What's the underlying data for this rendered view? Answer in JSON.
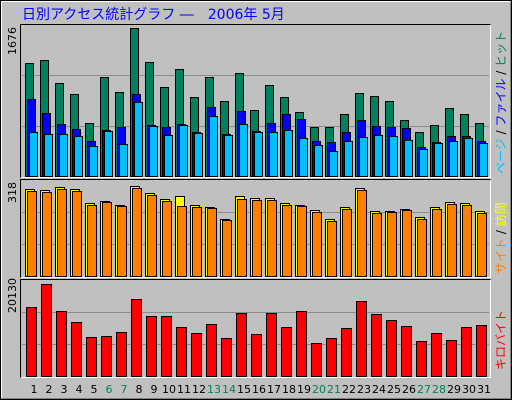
{
  "colors": {
    "background": "#C0C0C0",
    "title": "#0000FF",
    "weekday_label": "#000000",
    "weekend_label": "#00805C",
    "grid": "#8C8C8C",
    "separator": "#000000",
    "bar_outline": "#000000"
  },
  "chart_data": {
    "type": "bar",
    "title": "日別アクセス統計グラフ ―　2006年 5月",
    "grid": true,
    "legend": "right, vertical",
    "label_separator": " / ",
    "x": [
      1,
      2,
      3,
      4,
      5,
      6,
      7,
      8,
      9,
      10,
      11,
      12,
      13,
      14,
      15,
      16,
      17,
      18,
      19,
      20,
      21,
      22,
      23,
      24,
      25,
      26,
      27,
      28,
      29,
      30,
      31
    ],
    "weekend_days": [
      6,
      7,
      13,
      14,
      20,
      21,
      27,
      28
    ],
    "panels": [
      {
        "ylim": [
          0,
          1676
        ],
        "series": [
          {
            "name": "ヒット",
            "color": "#00805C",
            "values": [
              1274,
              1318,
              1050,
              927,
              603,
              1117,
              950,
              1676,
              1296,
              1006,
              1207,
              894,
              1117,
              849,
              1162,
              749,
              1028,
              894,
              726,
              559,
              559,
              704,
              939,
              905,
              849,
              637,
              503,
              581,
              771,
              704,
              603
            ]
          },
          {
            "name": "ファイル",
            "color": "#0000FF",
            "values": [
              871,
              715,
              592,
              536,
              391,
              525,
              559,
              927,
              581,
              560,
              592,
              503,
              782,
              480,
              737,
              514,
              603,
              704,
              648,
              391,
              380,
              503,
              637,
              570,
              559,
              548,
              324,
              380,
              458,
              458,
              391
            ]
          },
          {
            "name": "ページ",
            "color": "#00C0FF",
            "values": [
              503,
              480,
              480,
              458,
              335,
              514,
              358,
              838,
              570,
              469,
              581,
              492,
              682,
              469,
              592,
              503,
              503,
              525,
              425,
              346,
              279,
              402,
              436,
              469,
              458,
              413,
              302,
              369,
              402,
              425,
              369
            ]
          }
        ]
      },
      {
        "ylim": [
          0,
          318
        ],
        "series": [
          {
            "name": "訪問",
            "color": "#FFFF00",
            "values": [
              307,
              304,
              314,
              307,
              258,
              265,
              251,
              318,
              293,
              272,
              283,
              251,
              244,
              201,
              283,
              276,
              276,
              258,
              251,
              233,
              201,
              244,
              311,
              230,
              230,
              237,
              208,
              244,
              261,
              258,
              230
            ]
          },
          {
            "name": "サイト",
            "color": "#FF8000",
            "values": [
              300,
              297,
              307,
              300,
              251,
              261,
              247,
              311,
              286,
              265,
              247,
              244,
              240,
              198,
              272,
              269,
              269,
              251,
              247,
              226,
              194,
              237,
              304,
              223,
              226,
              233,
              201,
              237,
              254,
              251,
              223
            ]
          }
        ]
      },
      {
        "ylim": [
          0,
          20130
        ],
        "series": [
          {
            "name": "キロバイト",
            "color": "#FF0000",
            "values": [
              15097,
              20130,
              14222,
              11815,
              8533,
              8752,
              9627,
              16848,
              13128,
              13128,
              10721,
              9408,
              11378,
              8314,
              13784,
              9190,
              13784,
              10721,
              14222,
              7220,
              8314,
              10502,
              16410,
              13566,
              12253,
              10940,
              7658,
              9408,
              7877,
              10721,
              11159
            ]
          }
        ]
      }
    ]
  }
}
